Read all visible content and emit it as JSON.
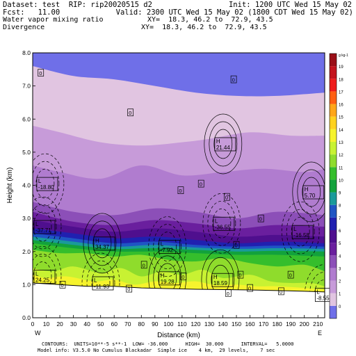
{
  "header": {
    "dataset_line": "Dataset: test  RIP: rip20020515 d2",
    "init_line": "Init: 1200 UTC Wed 15 May 02",
    "fcst_line": "Fcst:   11.00",
    "valid_line": "Valid: 2300 UTC Wed 15 May 02 (1800 CDT Wed 15 May 02)",
    "field1_line": "Water vapor mixing ratio",
    "xy1_line": "XY=  18.3, 46.2 to  72.9, 43.5",
    "field2_line": "Divergence",
    "xy2_line": "XY=  18.3, 46.2 to  72.9, 43.5"
  },
  "footer": {
    "line1": "CONTOURS:  UNITS=10**-5 s**-1  LOW= -36.000      HIGH=  30.000      INTERVAL=   5.0000",
    "line2": "Model info: V3.5.0 No Cumulus Blackadar  Simple ice    4 km,  29 levels,    7 sec"
  },
  "colors": {
    "shades": [
      "#6f6fe8",
      "#e1c5e1",
      "#c79bd9",
      "#b07ccf",
      "#8c4fb8",
      "#6a1f9e",
      "#4f0f8e",
      "#2020b0",
      "#1f55c4",
      "#1a9a9a",
      "#12a23c",
      "#35be2c",
      "#8fdc2c",
      "#c8f232",
      "#f6f32d",
      "#ffd21f",
      "#ffa619",
      "#ff5f12",
      "#ee1a1a",
      "#c4141e",
      "#9a0f18"
    ],
    "ground": "#ffffff",
    "contour": "#000000"
  },
  "chart_data": {
    "type": "heatmap",
    "title": "Water vapor mixing ratio",
    "overlay": "Divergence",
    "xlabel": "Distance (km)",
    "ylabel": "Height (km)",
    "xlim": [
      0,
      215
    ],
    "ylim": [
      0,
      8
    ],
    "x_ticks": [
      0,
      10,
      20,
      30,
      40,
      50,
      60,
      70,
      80,
      90,
      100,
      110,
      120,
      130,
      140,
      150,
      160,
      170,
      180,
      190,
      200,
      210
    ],
    "y_ticks": [
      0.0,
      1.0,
      2.0,
      3.0,
      4.0,
      5.0,
      6.0,
      7.0,
      8.0
    ],
    "x_end_labels": {
      "left": "W",
      "right": "E"
    },
    "colorbar": {
      "unit_label": "g kg-1",
      "levels": [
        0,
        1,
        2,
        3,
        4,
        5,
        6,
        7,
        8,
        9,
        10,
        11,
        12,
        13,
        14,
        15,
        16,
        17,
        18,
        19
      ]
    },
    "shading_bands": [
      {
        "level": 1,
        "base": [
          [
            0,
            7.6
          ],
          [
            30,
            7.3
          ],
          [
            60,
            7.2
          ],
          [
            90,
            7.0
          ],
          [
            120,
            6.8
          ],
          [
            150,
            6.7
          ],
          [
            180,
            6.7
          ],
          [
            215,
            6.8
          ]
        ]
      },
      {
        "level": 2,
        "base": [
          [
            0,
            5.8
          ],
          [
            20,
            5.6
          ],
          [
            50,
            5.3
          ],
          [
            80,
            5.2
          ],
          [
            110,
            5.3
          ],
          [
            130,
            5.4
          ],
          [
            160,
            5.6
          ],
          [
            190,
            5.5
          ],
          [
            215,
            5.5
          ]
        ]
      },
      {
        "level": 3,
        "base": [
          [
            0,
            4.6
          ],
          [
            20,
            4.4
          ],
          [
            50,
            4.2
          ],
          [
            80,
            4.6
          ],
          [
            110,
            4.3
          ],
          [
            140,
            4.4
          ],
          [
            170,
            4.5
          ],
          [
            200,
            4.4
          ],
          [
            215,
            4.5
          ]
        ]
      },
      {
        "level": 4,
        "base": [
          [
            0,
            3.5
          ],
          [
            30,
            3.2
          ],
          [
            60,
            3.1
          ],
          [
            90,
            3.3
          ],
          [
            120,
            3.2
          ],
          [
            150,
            3.0
          ],
          [
            180,
            3.2
          ],
          [
            215,
            3.1
          ]
        ]
      },
      {
        "level": 5,
        "base": [
          [
            0,
            3.2
          ],
          [
            30,
            2.9
          ],
          [
            60,
            2.8
          ],
          [
            90,
            2.95
          ],
          [
            120,
            2.85
          ],
          [
            150,
            2.7
          ],
          [
            180,
            2.8
          ],
          [
            215,
            2.75
          ]
        ]
      },
      {
        "level": 6,
        "base": [
          [
            0,
            2.95
          ],
          [
            30,
            2.75
          ],
          [
            60,
            2.6
          ],
          [
            90,
            2.7
          ],
          [
            120,
            2.6
          ],
          [
            150,
            2.45
          ],
          [
            180,
            2.5
          ],
          [
            215,
            2.45
          ]
        ]
      },
      {
        "level": 7,
        "base": [
          [
            0,
            2.7
          ],
          [
            30,
            2.55
          ],
          [
            60,
            2.4
          ],
          [
            90,
            2.45
          ],
          [
            120,
            2.35
          ],
          [
            150,
            2.25
          ],
          [
            180,
            2.3
          ],
          [
            215,
            2.25
          ]
        ]
      },
      {
        "level": 8,
        "base": [
          [
            0,
            2.55
          ],
          [
            30,
            2.4
          ],
          [
            60,
            2.25
          ],
          [
            90,
            2.3
          ],
          [
            120,
            2.2
          ],
          [
            150,
            2.15
          ],
          [
            180,
            2.18
          ],
          [
            215,
            2.15
          ]
        ]
      },
      {
        "level": 9,
        "base": [
          [
            0,
            2.45
          ],
          [
            30,
            2.3
          ],
          [
            60,
            2.15
          ],
          [
            90,
            2.2
          ],
          [
            120,
            2.12
          ],
          [
            150,
            2.08
          ],
          [
            180,
            2.1
          ],
          [
            215,
            2.08
          ]
        ]
      },
      {
        "level": 10,
        "base": [
          [
            0,
            2.35
          ],
          [
            30,
            2.2
          ],
          [
            60,
            2.08
          ],
          [
            90,
            2.1
          ],
          [
            120,
            2.05
          ],
          [
            150,
            2.0
          ],
          [
            180,
            2.02
          ],
          [
            215,
            2.0
          ]
        ]
      },
      {
        "level": 11,
        "base": [
          [
            0,
            2.25
          ],
          [
            30,
            2.1
          ],
          [
            60,
            2.0
          ],
          [
            90,
            2.0
          ],
          [
            120,
            1.95
          ],
          [
            150,
            1.9
          ],
          [
            180,
            1.9
          ],
          [
            215,
            1.85
          ]
        ]
      },
      {
        "level": 12,
        "base": [
          [
            0,
            2.05
          ],
          [
            20,
            1.95
          ],
          [
            40,
            1.95
          ],
          [
            60,
            1.85
          ],
          [
            80,
            1.9
          ],
          [
            100,
            1.75
          ],
          [
            120,
            1.7
          ],
          [
            140,
            1.8
          ],
          [
            160,
            1.65
          ],
          [
            180,
            1.55
          ],
          [
            200,
            1.6
          ],
          [
            215,
            1.4
          ]
        ]
      },
      {
        "level": 13,
        "base": [
          [
            0,
            1.5
          ],
          [
            15,
            1.4
          ],
          [
            30,
            1.55
          ],
          [
            50,
            1.35
          ],
          [
            65,
            1.5
          ],
          [
            80,
            1.25
          ],
          [
            95,
            1.4
          ],
          [
            110,
            1.3
          ],
          [
            125,
            1.45
          ],
          [
            140,
            1.2
          ],
          [
            160,
            1.3
          ],
          [
            175,
            1.1
          ],
          [
            190,
            1.05
          ],
          [
            205,
            1.05
          ],
          [
            215,
            0.95
          ]
        ]
      },
      {
        "level": 14,
        "base": [
          [
            0,
            1.3
          ],
          [
            10,
            1.2
          ],
          [
            25,
            1.25
          ],
          [
            45,
            1.1
          ],
          [
            60,
            1.15
          ],
          [
            75,
            1.0
          ],
          [
            90,
            1.1
          ],
          [
            105,
            1.05
          ],
          [
            120,
            1.1
          ],
          [
            135,
            0.98
          ],
          [
            150,
            1.0
          ],
          [
            165,
            0.95
          ],
          [
            180,
            0.95
          ],
          [
            200,
            0.9
          ],
          [
            215,
            0.85
          ]
        ]
      }
    ],
    "terrain": [
      [
        0,
        1.05
      ],
      [
        20,
        1.0
      ],
      [
        40,
        0.95
      ],
      [
        60,
        0.95
      ],
      [
        80,
        0.9
      ],
      [
        100,
        0.88
      ],
      [
        120,
        0.86
      ],
      [
        140,
        0.85
      ],
      [
        160,
        0.84
      ],
      [
        180,
        0.82
      ],
      [
        200,
        0.8
      ],
      [
        215,
        0.78
      ]
    ],
    "extrema_labels": [
      {
        "type": "L",
        "value": "-18.80",
        "x": 2,
        "y": 4.05
      },
      {
        "type": "H",
        "value": "21.44",
        "x": 133,
        "y": 5.25
      },
      {
        "type": "H",
        "value": "5.70",
        "x": 198,
        "y": 3.8
      },
      {
        "type": "L",
        "value": "-36.55",
        "x": 132,
        "y": 2.85
      },
      {
        "type": "L",
        "value": "-16.58",
        "x": 190,
        "y": 2.6
      },
      {
        "type": "L",
        "value": "-37.71",
        "x": 0,
        "y": 2.75
      },
      {
        "type": "H",
        "value": "34.37",
        "x": 44,
        "y": 2.25
      },
      {
        "type": "L",
        "value": "-7.92",
        "x": 92,
        "y": 2.15
      },
      {
        "type": "H",
        "value": "19.28",
        "x": 92,
        "y": 1.2
      },
      {
        "type": "H",
        "value": "18.59",
        "x": 131,
        "y": 1.15
      },
      {
        "type": "L",
        "value": "-11.93",
        "x": 43,
        "y": 1.05
      },
      {
        "type": "L",
        "value": "24.25",
        "x": 0,
        "y": 1.25
      },
      {
        "type": "L",
        "value": "-8.55",
        "x": 207,
        "y": 0.7
      }
    ],
    "zero_labels": [
      [
        6,
        7.4
      ],
      [
        72,
        6.2
      ],
      [
        148,
        7.2
      ],
      [
        109,
        3.85
      ],
      [
        124,
        4.05
      ],
      [
        143,
        3.65
      ],
      [
        168,
        3.0
      ],
      [
        150,
        2.2
      ],
      [
        82,
        1.6
      ],
      [
        111,
        1.25
      ],
      [
        153,
        1.3
      ],
      [
        22,
        1.0
      ],
      [
        71,
        0.88
      ],
      [
        144,
        0.75
      ],
      [
        183,
        0.8
      ],
      [
        190,
        1.3
      ],
      [
        160,
        0.9
      ]
    ]
  }
}
